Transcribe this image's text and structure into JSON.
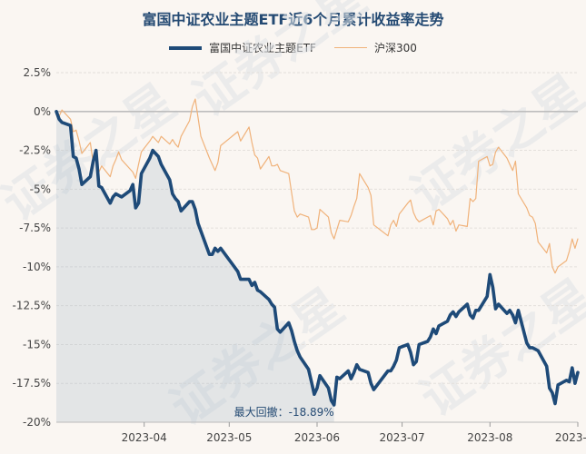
{
  "chart_data": {
    "type": "line",
    "title": "富国中证农业主题ETF近6个月累计收益率走势",
    "ylim": [
      -20,
      2.5
    ],
    "yticks": [
      2.5,
      0,
      -2.5,
      -5,
      -7.5,
      -10,
      -12.5,
      -15,
      -17.5,
      -20
    ],
    "ytick_labels": [
      "2.5%",
      "0%",
      "-2.5%",
      "-5%",
      "-7.5%",
      "-10%",
      "-12.5%",
      "-15%",
      "-17.5%",
      "-20%"
    ],
    "xlim": [
      "2023-03-01",
      "2023-09-01"
    ],
    "xticks": [
      "2023-04-01",
      "2023-05-01",
      "2023-06-01",
      "2023-07-01",
      "2023-08-01",
      "2023-09-01"
    ],
    "xtick_labels": [
      "2023-04",
      "2023-05",
      "2023-06",
      "2023-07",
      "2023-08",
      "2023-09"
    ],
    "legend_position": "top-center",
    "series": [
      {
        "name": "富国中证农业主题ETF",
        "color": "#1e4a78",
        "points": [
          [
            "2023-03-01",
            0
          ],
          [
            "2023-03-02",
            -0.5
          ],
          [
            "2023-03-03",
            -0.7
          ],
          [
            "2023-03-06",
            -0.9
          ],
          [
            "2023-03-07",
            -2.9
          ],
          [
            "2023-03-08",
            -3.0
          ],
          [
            "2023-03-09",
            -3.7
          ],
          [
            "2023-03-10",
            -4.7
          ],
          [
            "2023-03-13",
            -4.2
          ],
          [
            "2023-03-14",
            -3.2
          ],
          [
            "2023-03-15",
            -2.5
          ],
          [
            "2023-03-16",
            -4.8
          ],
          [
            "2023-03-17",
            -4.9
          ],
          [
            "2023-03-20",
            -5.9
          ],
          [
            "2023-03-21",
            -5.5
          ],
          [
            "2023-03-22",
            -5.3
          ],
          [
            "2023-03-23",
            -5.4
          ],
          [
            "2023-03-24",
            -5.5
          ],
          [
            "2023-03-27",
            -5.1
          ],
          [
            "2023-03-28",
            -4.7
          ],
          [
            "2023-03-29",
            -6.2
          ],
          [
            "2023-03-30",
            -5.9
          ],
          [
            "2023-03-31",
            -4.0
          ],
          [
            "2023-04-03",
            -3.0
          ],
          [
            "2023-04-04",
            -2.5
          ],
          [
            "2023-04-06",
            -2.9
          ],
          [
            "2023-04-07",
            -3.4
          ],
          [
            "2023-04-10",
            -4.4
          ],
          [
            "2023-04-11",
            -5.3
          ],
          [
            "2023-04-12",
            -5.6
          ],
          [
            "2023-04-13",
            -5.8
          ],
          [
            "2023-04-14",
            -6.4
          ],
          [
            "2023-04-17",
            -5.8
          ],
          [
            "2023-04-18",
            -5.8
          ],
          [
            "2023-04-19",
            -6.3
          ],
          [
            "2023-04-20",
            -7.2
          ],
          [
            "2023-04-21",
            -7.7
          ],
          [
            "2023-04-24",
            -9.2
          ],
          [
            "2023-04-25",
            -9.2
          ],
          [
            "2023-04-26",
            -8.8
          ],
          [
            "2023-04-27",
            -9.0
          ],
          [
            "2023-04-28",
            -8.8
          ],
          [
            "2023-05-04",
            -10.3
          ],
          [
            "2023-05-05",
            -10.8
          ],
          [
            "2023-05-08",
            -10.8
          ],
          [
            "2023-05-09",
            -11.2
          ],
          [
            "2023-05-10",
            -11.0
          ],
          [
            "2023-05-11",
            -11.5
          ],
          [
            "2023-05-12",
            -11.6
          ],
          [
            "2023-05-15",
            -12.1
          ],
          [
            "2023-05-16",
            -12.4
          ],
          [
            "2023-05-17",
            -12.6
          ],
          [
            "2023-05-18",
            -14.0
          ],
          [
            "2023-05-19",
            -14.2
          ],
          [
            "2023-05-22",
            -13.6
          ],
          [
            "2023-05-23",
            -14.1
          ],
          [
            "2023-05-24",
            -14.8
          ],
          [
            "2023-05-25",
            -15.4
          ],
          [
            "2023-05-26",
            -15.8
          ],
          [
            "2023-05-29",
            -16.6
          ],
          [
            "2023-05-30",
            -17.4
          ],
          [
            "2023-05-31",
            -18.2
          ],
          [
            "2023-06-01",
            -17.8
          ],
          [
            "2023-06-02",
            -17.0
          ],
          [
            "2023-06-05",
            -17.8
          ],
          [
            "2023-06-06",
            -18.6
          ],
          [
            "2023-06-07",
            -18.89
          ],
          [
            "2023-06-08",
            -17.1
          ],
          [
            "2023-06-09",
            -17.2
          ],
          [
            "2023-06-12",
            -16.7
          ],
          [
            "2023-06-13",
            -17.2
          ],
          [
            "2023-06-14",
            -16.8
          ],
          [
            "2023-06-15",
            -16.3
          ],
          [
            "2023-06-16",
            -16.6
          ],
          [
            "2023-06-19",
            -16.8
          ],
          [
            "2023-06-20",
            -17.5
          ],
          [
            "2023-06-21",
            -17.9
          ],
          [
            "2023-06-26",
            -16.7
          ],
          [
            "2023-06-27",
            -16.7
          ],
          [
            "2023-06-28",
            -16.4
          ],
          [
            "2023-06-29",
            -16.0
          ],
          [
            "2023-06-30",
            -15.2
          ],
          [
            "2023-07-03",
            -15.0
          ],
          [
            "2023-07-04",
            -15.5
          ],
          [
            "2023-07-05",
            -16.3
          ],
          [
            "2023-07-06",
            -16.1
          ],
          [
            "2023-07-07",
            -15.0
          ],
          [
            "2023-07-10",
            -14.8
          ],
          [
            "2023-07-11",
            -14.5
          ],
          [
            "2023-07-12",
            -14.0
          ],
          [
            "2023-07-13",
            -14.3
          ],
          [
            "2023-07-14",
            -13.8
          ],
          [
            "2023-07-17",
            -13.5
          ],
          [
            "2023-07-18",
            -13.1
          ],
          [
            "2023-07-19",
            -12.9
          ],
          [
            "2023-07-20",
            -13.2
          ],
          [
            "2023-07-21",
            -12.9
          ],
          [
            "2023-07-24",
            -12.4
          ],
          [
            "2023-07-25",
            -13.1
          ],
          [
            "2023-07-26",
            -13.3
          ],
          [
            "2023-07-27",
            -12.8
          ],
          [
            "2023-07-28",
            -12.8
          ],
          [
            "2023-07-31",
            -11.9
          ],
          [
            "2023-08-01",
            -10.5
          ],
          [
            "2023-08-02",
            -11.3
          ],
          [
            "2023-08-03",
            -12.7
          ],
          [
            "2023-08-04",
            -12.4
          ],
          [
            "2023-08-07",
            -13.0
          ],
          [
            "2023-08-08",
            -12.8
          ],
          [
            "2023-08-09",
            -13.1
          ],
          [
            "2023-08-10",
            -13.6
          ],
          [
            "2023-08-11",
            -12.8
          ],
          [
            "2023-08-14",
            -14.9
          ],
          [
            "2023-08-15",
            -15.2
          ],
          [
            "2023-08-16",
            -15.2
          ],
          [
            "2023-08-17",
            -15.3
          ],
          [
            "2023-08-18",
            -15.4
          ],
          [
            "2023-08-21",
            -16.4
          ],
          [
            "2023-08-22",
            -17.8
          ],
          [
            "2023-08-23",
            -18.1
          ],
          [
            "2023-08-24",
            -18.8
          ],
          [
            "2023-08-25",
            -17.6
          ],
          [
            "2023-08-28",
            -17.3
          ],
          [
            "2023-08-29",
            -17.4
          ],
          [
            "2023-08-30",
            -16.5
          ],
          [
            "2023-08-31",
            -17.5
          ],
          [
            "2023-09-01",
            -16.8
          ]
        ]
      },
      {
        "name": "沪深300",
        "color": "#f0b27a",
        "points": [
          [
            "2023-03-01",
            0
          ],
          [
            "2023-03-02",
            -0.3
          ],
          [
            "2023-03-03",
            0.1
          ],
          [
            "2023-03-06",
            -0.5
          ],
          [
            "2023-03-07",
            -1.3
          ],
          [
            "2023-03-08",
            -1.2
          ],
          [
            "2023-03-09",
            -1.9
          ],
          [
            "2023-03-10",
            -2.7
          ],
          [
            "2023-03-13",
            -2.0
          ],
          [
            "2023-03-14",
            -3.3
          ],
          [
            "2023-03-15",
            -2.8
          ],
          [
            "2023-03-16",
            -3.9
          ],
          [
            "2023-03-17",
            -3.5
          ],
          [
            "2023-03-20",
            -4.2
          ],
          [
            "2023-03-21",
            -3.5
          ],
          [
            "2023-03-22",
            -3.1
          ],
          [
            "2023-03-23",
            -2.6
          ],
          [
            "2023-03-24",
            -3.1
          ],
          [
            "2023-03-27",
            -3.7
          ],
          [
            "2023-03-28",
            -3.9
          ],
          [
            "2023-03-29",
            -4.3
          ],
          [
            "2023-03-30",
            -3.4
          ],
          [
            "2023-03-31",
            -2.6
          ],
          [
            "2023-04-03",
            -1.9
          ],
          [
            "2023-04-04",
            -1.6
          ],
          [
            "2023-04-06",
            -2.0
          ],
          [
            "2023-04-07",
            -1.6
          ],
          [
            "2023-04-10",
            -2.1
          ],
          [
            "2023-04-11",
            -1.8
          ],
          [
            "2023-04-12",
            -2.1
          ],
          [
            "2023-04-13",
            -2.3
          ],
          [
            "2023-04-14",
            -1.6
          ],
          [
            "2023-04-17",
            -0.6
          ],
          [
            "2023-04-18",
            0.3
          ],
          [
            "2023-04-19",
            0.8
          ],
          [
            "2023-04-20",
            -0.4
          ],
          [
            "2023-04-21",
            -1.6
          ],
          [
            "2023-04-24",
            -3.0
          ],
          [
            "2023-04-25",
            -3.4
          ],
          [
            "2023-04-26",
            -3.8
          ],
          [
            "2023-04-27",
            -3.3
          ],
          [
            "2023-04-28",
            -2.2
          ],
          [
            "2023-05-04",
            -1.3
          ],
          [
            "2023-05-05",
            -1.9
          ],
          [
            "2023-05-08",
            -1.0
          ],
          [
            "2023-05-09",
            -2.0
          ],
          [
            "2023-05-10",
            -2.8
          ],
          [
            "2023-05-11",
            -3.0
          ],
          [
            "2023-05-12",
            -3.7
          ],
          [
            "2023-05-15",
            -2.9
          ],
          [
            "2023-05-16",
            -3.5
          ],
          [
            "2023-05-17",
            -3.5
          ],
          [
            "2023-05-18",
            -3.4
          ],
          [
            "2023-05-19",
            -3.8
          ],
          [
            "2023-05-22",
            -4.0
          ],
          [
            "2023-05-23",
            -5.2
          ],
          [
            "2023-05-24",
            -6.4
          ],
          [
            "2023-05-25",
            -6.8
          ],
          [
            "2023-05-26",
            -6.6
          ],
          [
            "2023-05-29",
            -6.8
          ],
          [
            "2023-05-30",
            -7.6
          ],
          [
            "2023-05-31",
            -7.6
          ],
          [
            "2023-06-01",
            -7.5
          ],
          [
            "2023-06-02",
            -6.3
          ],
          [
            "2023-06-05",
            -6.8
          ],
          [
            "2023-06-06",
            -7.8
          ],
          [
            "2023-06-07",
            -8.2
          ],
          [
            "2023-06-08",
            -7.6
          ],
          [
            "2023-06-09",
            -7.0
          ],
          [
            "2023-06-12",
            -7.1
          ],
          [
            "2023-06-13",
            -6.7
          ],
          [
            "2023-06-14",
            -6.1
          ],
          [
            "2023-06-15",
            -5.6
          ],
          [
            "2023-06-16",
            -4.0
          ],
          [
            "2023-06-19",
            -4.9
          ],
          [
            "2023-06-20",
            -5.4
          ],
          [
            "2023-06-21",
            -7.3
          ],
          [
            "2023-06-26",
            -8.0
          ],
          [
            "2023-06-27",
            -7.3
          ],
          [
            "2023-06-28",
            -7.0
          ],
          [
            "2023-06-29",
            -7.4
          ],
          [
            "2023-06-30",
            -6.6
          ],
          [
            "2023-07-03",
            -5.9
          ],
          [
            "2023-07-04",
            -5.7
          ],
          [
            "2023-07-05",
            -6.5
          ],
          [
            "2023-07-06",
            -6.9
          ],
          [
            "2023-07-07",
            -7.1
          ],
          [
            "2023-07-10",
            -6.8
          ],
          [
            "2023-07-11",
            -6.7
          ],
          [
            "2023-07-12",
            -7.3
          ],
          [
            "2023-07-13",
            -6.4
          ],
          [
            "2023-07-14",
            -6.3
          ],
          [
            "2023-07-17",
            -6.9
          ],
          [
            "2023-07-18",
            -7.3
          ],
          [
            "2023-07-19",
            -7.0
          ],
          [
            "2023-07-20",
            -7.7
          ],
          [
            "2023-07-21",
            -7.3
          ],
          [
            "2023-07-24",
            -7.4
          ],
          [
            "2023-07-25",
            -5.6
          ],
          [
            "2023-07-26",
            -5.8
          ],
          [
            "2023-07-27",
            -5.6
          ],
          [
            "2023-07-28",
            -3.2
          ],
          [
            "2023-07-31",
            -2.9
          ],
          [
            "2023-08-01",
            -3.5
          ],
          [
            "2023-08-02",
            -3.4
          ],
          [
            "2023-08-03",
            -2.6
          ],
          [
            "2023-08-04",
            -2.3
          ],
          [
            "2023-08-07",
            -3.0
          ],
          [
            "2023-08-08",
            -3.4
          ],
          [
            "2023-08-09",
            -3.8
          ],
          [
            "2023-08-10",
            -3.2
          ],
          [
            "2023-08-11",
            -5.3
          ],
          [
            "2023-08-14",
            -6.2
          ],
          [
            "2023-08-15",
            -6.7
          ],
          [
            "2023-08-16",
            -6.8
          ],
          [
            "2023-08-17",
            -7.2
          ],
          [
            "2023-08-18",
            -8.4
          ],
          [
            "2023-08-21",
            -9.1
          ],
          [
            "2023-08-22",
            -8.5
          ],
          [
            "2023-08-23",
            -10.0
          ],
          [
            "2023-08-24",
            -10.4
          ],
          [
            "2023-08-25",
            -10.0
          ],
          [
            "2023-08-28",
            -9.6
          ],
          [
            "2023-08-29",
            -9.0
          ],
          [
            "2023-08-30",
            -8.2
          ],
          [
            "2023-08-31",
            -8.8
          ],
          [
            "2023-09-01",
            -8.2
          ]
        ]
      }
    ],
    "annotation": {
      "label": "最大回撤：-18.89%",
      "series": "富国中证农业主题ETF",
      "peak_date": "2023-03-01",
      "trough_date": "2023-06-07",
      "shade_color": "#9fb3c4"
    },
    "watermark": "证券之星"
  }
}
